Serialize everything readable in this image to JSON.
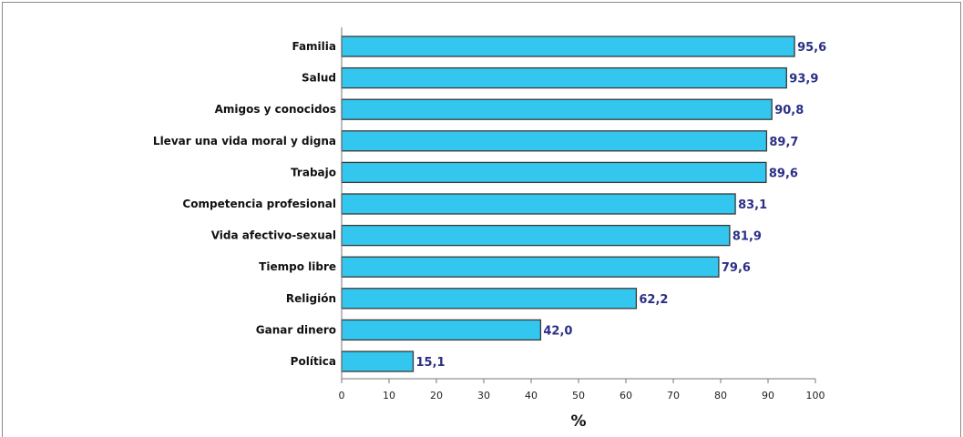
{
  "chart_data": {
    "type": "bar",
    "orientation": "horizontal",
    "categories": [
      "Familia",
      "Salud",
      "Amigos y conocidos",
      "Llevar una vida moral y digna",
      "Trabajo",
      "Competencia profesional",
      "Vida afectivo-sexual",
      "Tiempo libre",
      "Religión",
      "Ganar dinero",
      "Política"
    ],
    "values": [
      95.6,
      93.9,
      90.8,
      89.7,
      89.6,
      83.1,
      81.9,
      79.6,
      62.2,
      42.0,
      15.1
    ],
    "value_labels": [
      "95,6",
      "93,9",
      "90,8",
      "89,7",
      "89,6",
      "83,1",
      "81,9",
      "79,6",
      "62,2",
      "42,0",
      "15,1"
    ],
    "xlim": [
      0,
      100
    ],
    "xticks": [
      "0",
      "10",
      "20",
      "30",
      "40",
      "50",
      "60",
      "70",
      "80",
      "90",
      "100"
    ],
    "xlabel": "%",
    "ylabel": "",
    "title": "",
    "grid": false,
    "legend": "none",
    "colors": {
      "bar_fill": "#33c6ee",
      "bar_stroke": "#3a3a3a",
      "value_label": "#2b2f86",
      "axis": "#777777"
    }
  }
}
